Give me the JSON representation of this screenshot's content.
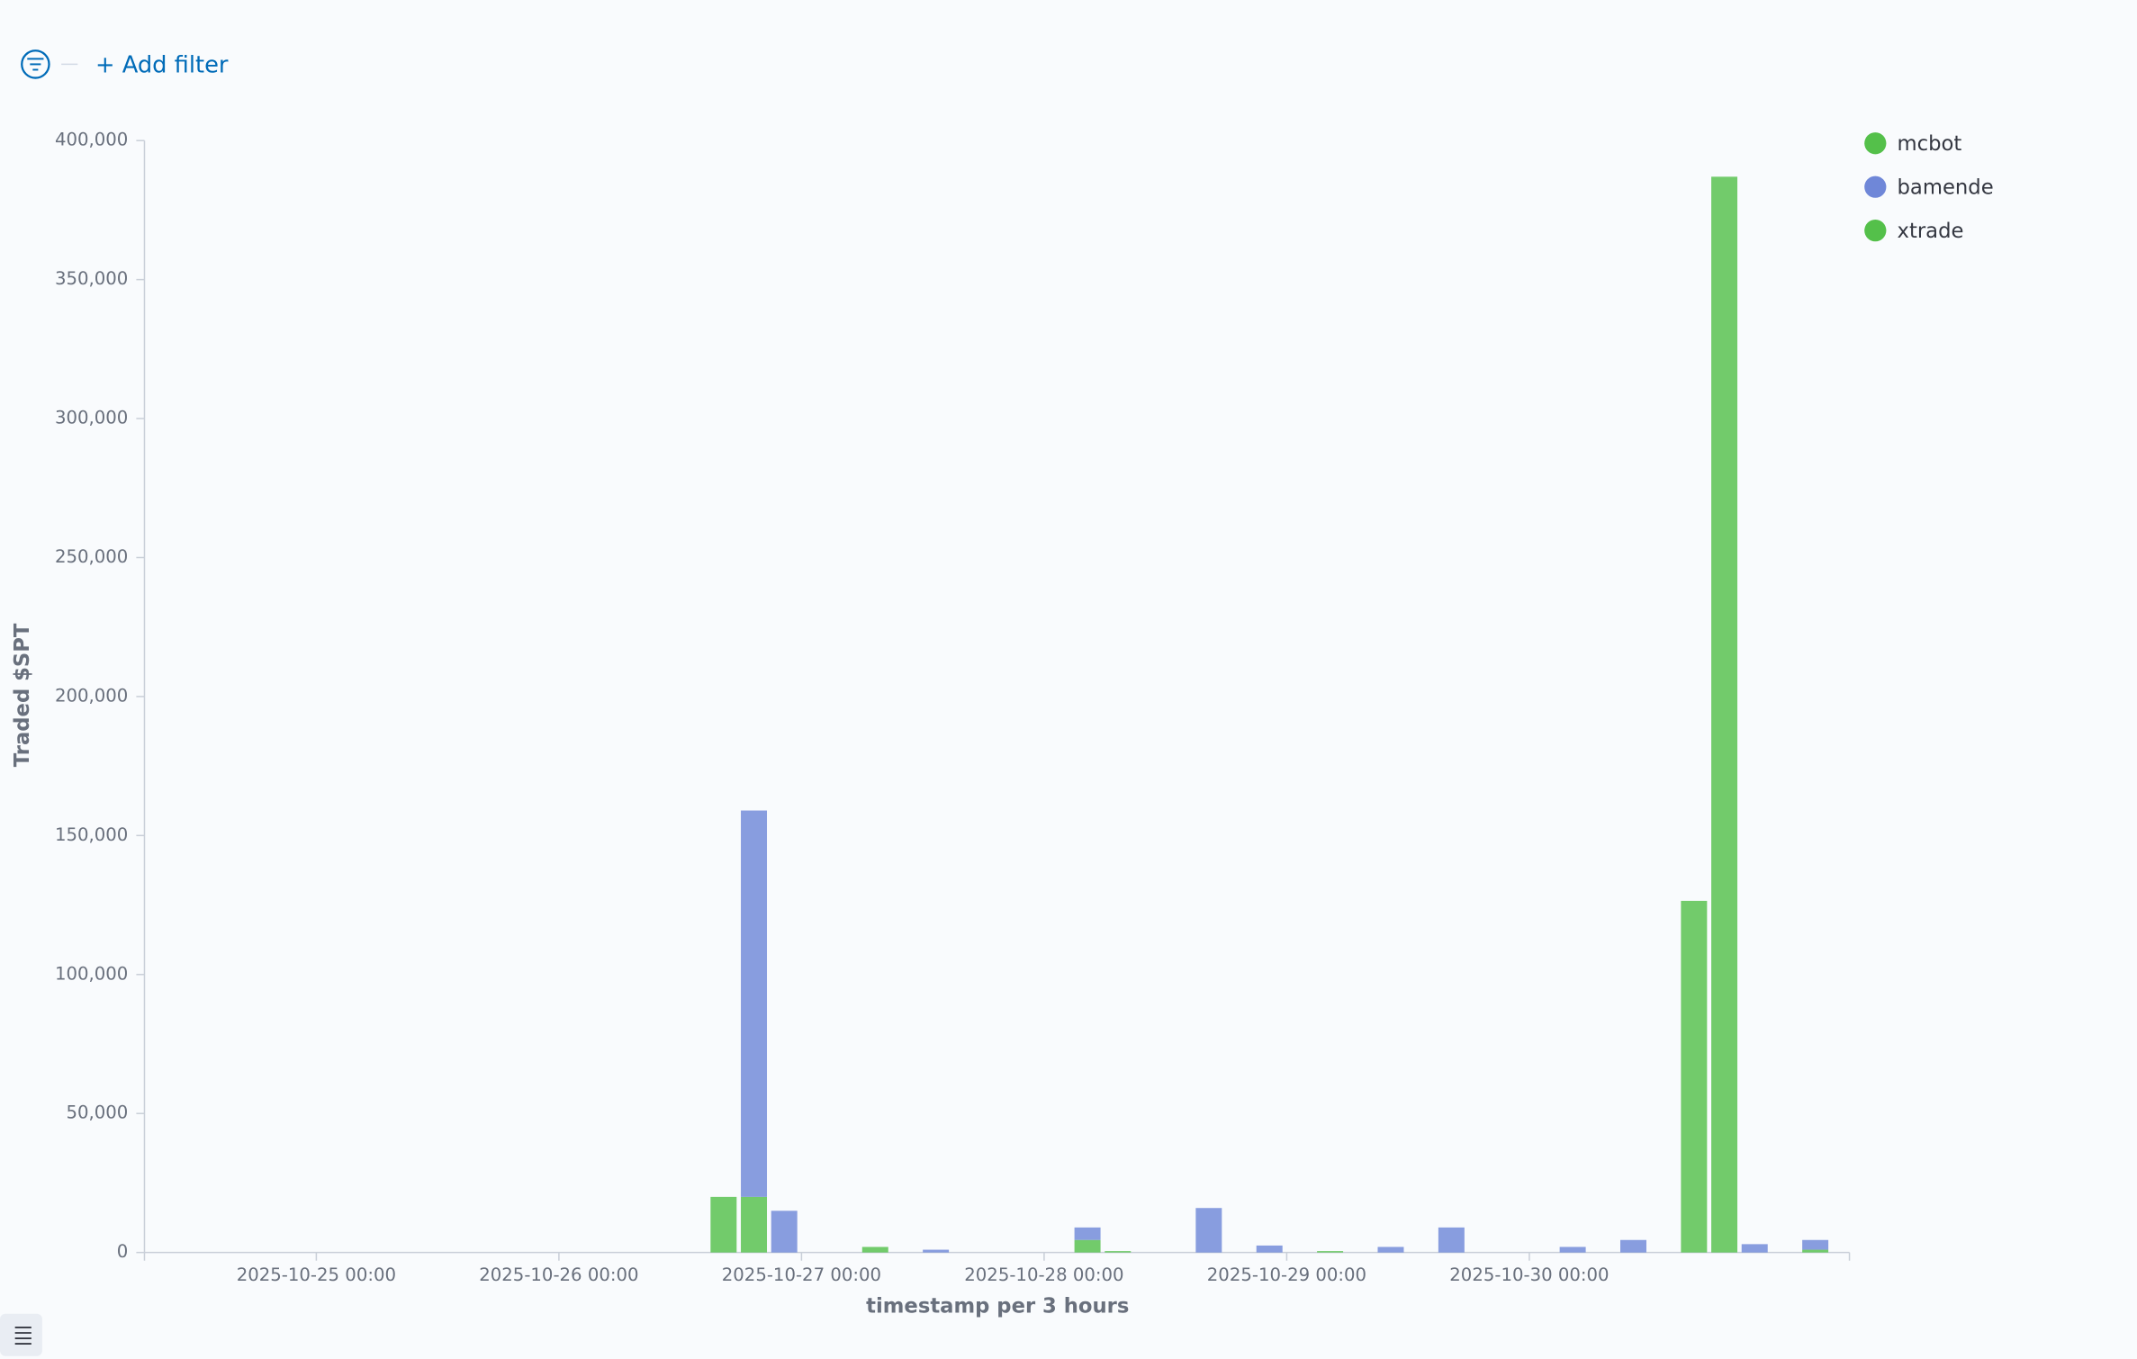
{
  "filter_bar": {
    "add_filter": "+ Add filter"
  },
  "chart_data": {
    "type": "bar",
    "stacked": true,
    "x_label": "timestamp per 3 hours",
    "y_label": "Traded $SPT",
    "x": [
      "2025-10-26 15:00",
      "2025-10-26 18:00",
      "2025-10-26 21:00",
      "2025-10-27 06:00",
      "2025-10-27 12:00",
      "2025-10-28 03:00",
      "2025-10-28 06:00",
      "2025-10-28 15:00",
      "2025-10-28 21:00",
      "2025-10-29 03:00",
      "2025-10-29 09:00",
      "2025-10-29 15:00",
      "2025-10-30 03:00",
      "2025-10-30 09:00",
      "2025-10-30 15:00",
      "2025-10-30 18:00",
      "2025-10-30 21:00",
      "2025-10-31 03:00"
    ],
    "series": [
      {
        "name": "mcbot",
        "color": "#54c04a",
        "values": [
          20000,
          20000,
          null,
          2000,
          null,
          4500,
          500,
          null,
          null,
          null,
          null,
          null,
          null,
          null,
          null,
          null,
          null,
          1000
        ]
      },
      {
        "name": "bamende",
        "color": "#6f87d8",
        "values": [
          null,
          139000,
          15000,
          null,
          1000,
          4500,
          null,
          16000,
          2500,
          null,
          2000,
          9000,
          2000,
          4500,
          null,
          null,
          3000,
          3500
        ]
      },
      {
        "name": "xtrade",
        "color": "#54c04a",
        "values": [
          null,
          null,
          null,
          null,
          null,
          null,
          null,
          null,
          null,
          500,
          null,
          null,
          null,
          null,
          126500,
          387000,
          null,
          null
        ]
      }
    ],
    "xlim": [
      "2025-10-24 07:00",
      "2025-10-31 07:40"
    ],
    "xticks": [
      "2025-10-25 00:00",
      "2025-10-26 00:00",
      "2025-10-27 00:00",
      "2025-10-28 00:00",
      "2025-10-29 00:00",
      "2025-10-30 00:00"
    ],
    "ylim": [
      0,
      400000
    ],
    "yticks": [
      0,
      {
        "value": 50000,
        "label": "50,000"
      },
      {
        "value": 100000,
        "label": "100,000"
      },
      {
        "value": 150000,
        "label": "150,000"
      },
      {
        "value": 200000,
        "label": "200,000"
      },
      {
        "value": 250000,
        "label": "250,000"
      },
      {
        "value": 300000,
        "label": "300,000"
      },
      {
        "value": 350000,
        "label": "350,000"
      },
      {
        "value": 400000,
        "label": "400,000"
      }
    ],
    "legend": "top-right"
  }
}
